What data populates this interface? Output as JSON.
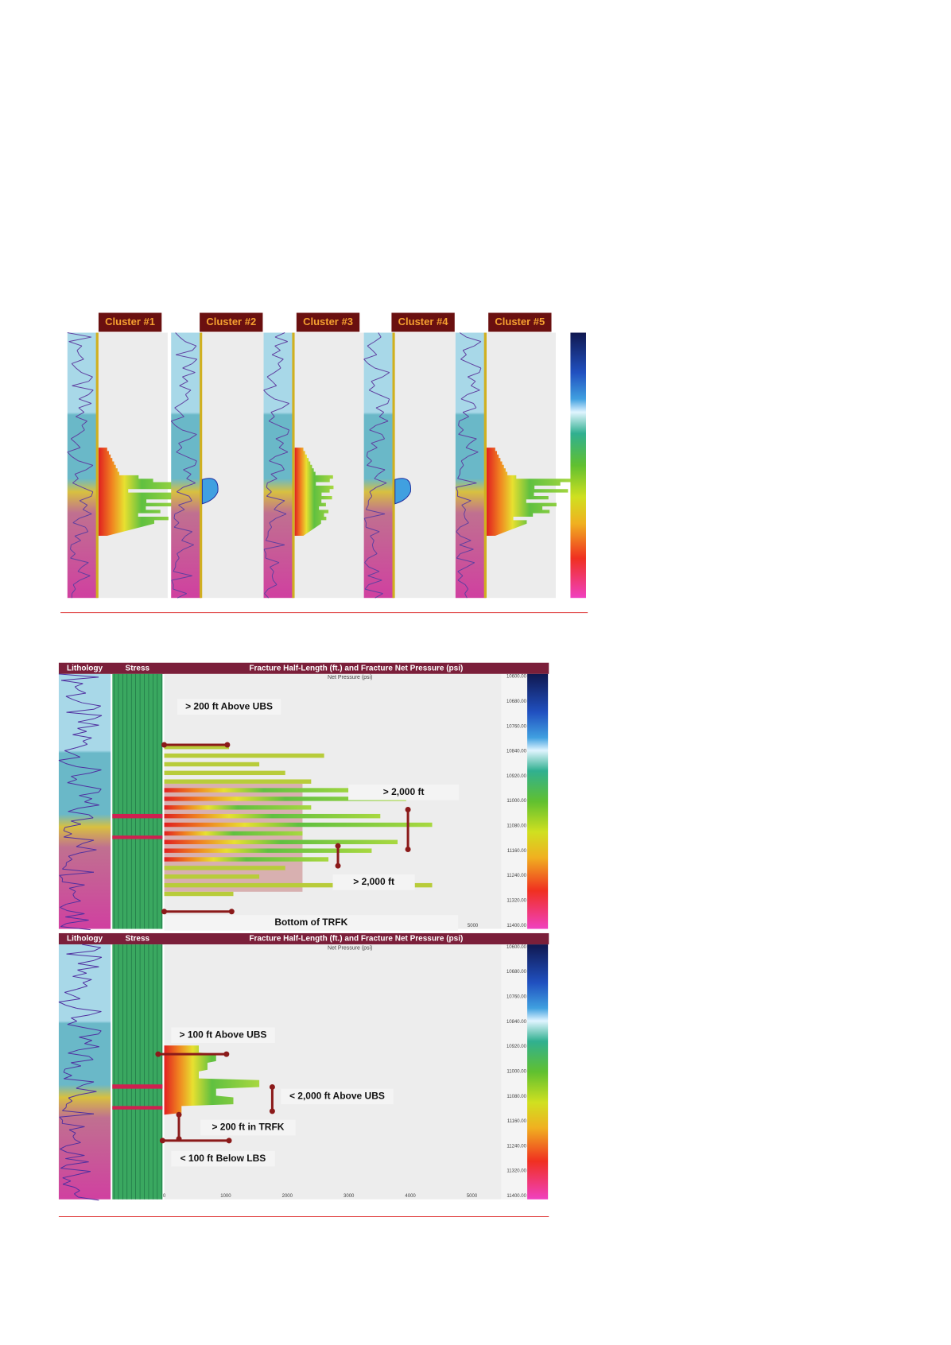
{
  "figure1": {
    "clusters": [
      "Cluster #1",
      "Cluster #2",
      "Cluster #3",
      "Cluster #4",
      "Cluster #5"
    ]
  },
  "figure2": {
    "panels": [
      {
        "lithology_header": "Lithology",
        "stress_header": "Stress",
        "plot_header": "Fracture Half-Length (ft.) and Fracture Net Pressure (psi)",
        "subtitle": "Net Pressure (psi)",
        "depth_ticks": [
          "10600.00",
          "10680.00",
          "10760.00",
          "10840.00",
          "10920.00",
          "11000.00",
          "11080.00",
          "11160.00",
          "11240.00",
          "11320.00",
          "11400.00"
        ],
        "x_ticks": [
          "5000"
        ],
        "annotations": [
          "> 200 ft Above UBS",
          "> 2,000 ft",
          "> 2,000 ft",
          "Bottom of TRFK"
        ]
      },
      {
        "lithology_header": "Lithology",
        "stress_header": "Stress",
        "plot_header": "Fracture Half-Length (ft.) and Fracture Net Pressure (psi)",
        "subtitle": "Net Pressure (psi)",
        "depth_ticks": [
          "10600.00",
          "10680.00",
          "10760.00",
          "10840.00",
          "10920.00",
          "11000.00",
          "11080.00",
          "11160.00",
          "11240.00",
          "11320.00",
          "11400.00"
        ],
        "x_ticks": [
          "0",
          "1000",
          "2000",
          "3000",
          "4000",
          "5000"
        ],
        "annotations": [
          "> 100 ft Above UBS",
          "< 2,000 ft Above UBS",
          "> 200 ft in TRFK",
          "< 100 ft Below LBS"
        ]
      }
    ]
  }
}
